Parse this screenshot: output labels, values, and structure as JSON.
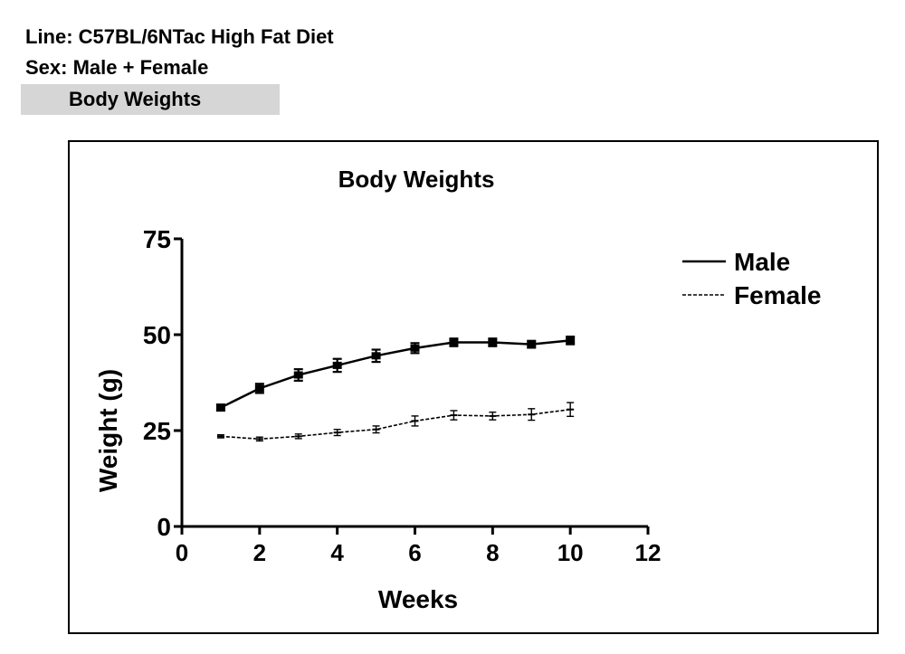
{
  "header": {
    "line": "Line: C57BL/6NTac High Fat Diet",
    "sex": "Sex: Male + Female",
    "section": "Body Weights"
  },
  "chart_data": {
    "type": "line",
    "title": "Body Weights",
    "xlabel": "Weeks",
    "ylabel": "Weight (g)",
    "xlim": [
      0,
      12
    ],
    "ylim": [
      0,
      75
    ],
    "xticks": [
      0,
      2,
      4,
      6,
      8,
      10,
      12
    ],
    "yticks": [
      0,
      25,
      50,
      75
    ],
    "grid": false,
    "legend_position": "top-right",
    "x": [
      1,
      2,
      3,
      4,
      5,
      6,
      7,
      8,
      9,
      10
    ],
    "series": [
      {
        "name": "Male",
        "style": "solid",
        "marker": "square",
        "values": [
          31,
          36,
          39.5,
          42,
          44.5,
          46.5,
          48,
          48,
          47.5,
          48.5
        ],
        "error": [
          0.8,
          1.2,
          1.5,
          1.7,
          1.6,
          1.3,
          1.0,
          1.0,
          0.9,
          1.0
        ]
      },
      {
        "name": "Female",
        "style": "dashed",
        "marker": "dash",
        "values": [
          23.5,
          22.8,
          23.5,
          24.5,
          25.3,
          27.5,
          29,
          28.8,
          29.2,
          30.5
        ],
        "error": [
          0.4,
          0.5,
          0.6,
          0.8,
          0.9,
          1.3,
          1.2,
          1.0,
          1.5,
          1.8
        ]
      }
    ]
  }
}
